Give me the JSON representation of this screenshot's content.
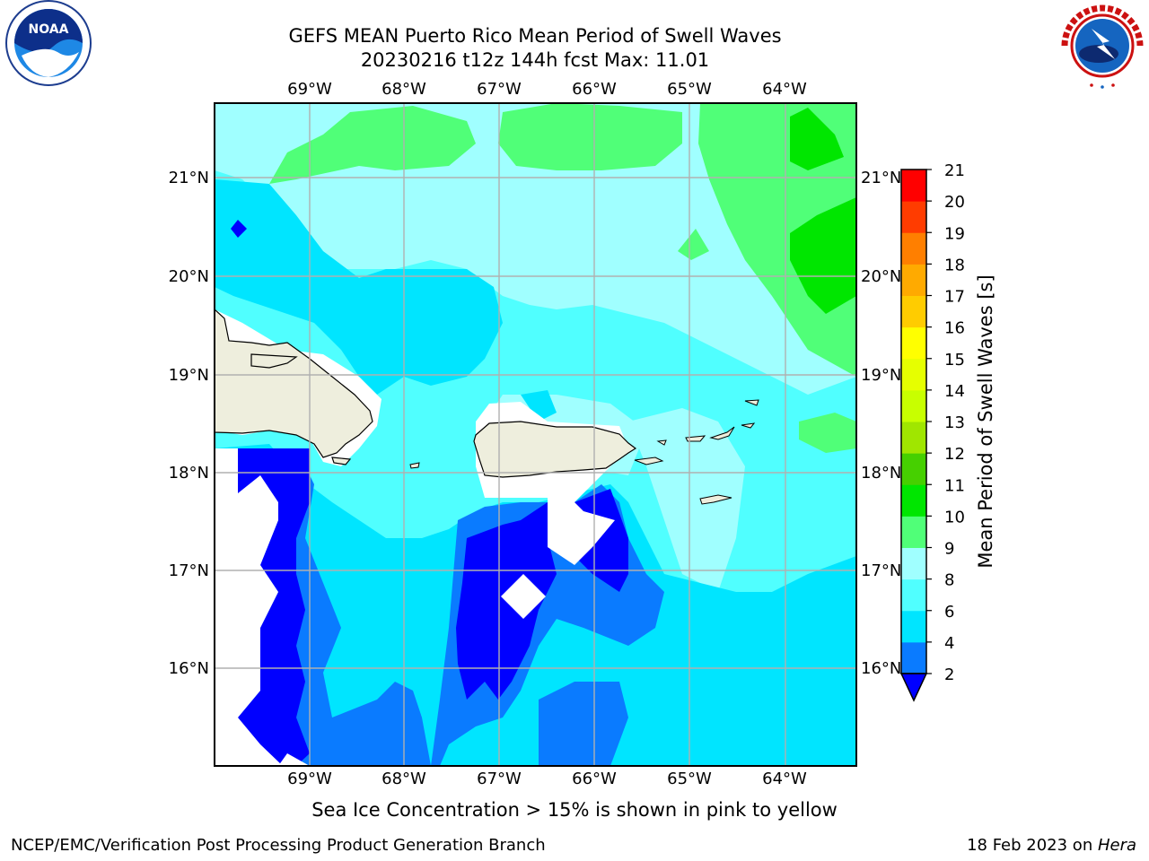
{
  "header": {
    "title_line1": "GEFS MEAN Puerto Rico Mean Period of Swell Waves",
    "title_line2": "20230216 t12z 144h fcst   Max: 11.01"
  },
  "logos": {
    "left": {
      "icon": "noaa-logo",
      "text": "NOAA"
    },
    "right": {
      "icon": "nws-logo",
      "text": "NATIONAL WEATHER SERVICE"
    }
  },
  "map": {
    "lon_labels": [
      "69°W",
      "68°W",
      "67°W",
      "66°W",
      "65°W",
      "64°W"
    ],
    "lat_labels": [
      "21°N",
      "20°N",
      "19°N",
      "18°N",
      "17°N",
      "16°N"
    ]
  },
  "colorbar": {
    "label": "Mean Period of Swell Waves [s]",
    "ticks": [
      "2",
      "4",
      "6",
      "8",
      "9",
      "10",
      "11",
      "12",
      "13",
      "14",
      "15",
      "16",
      "17",
      "18",
      "19",
      "20",
      "21"
    ],
    "colors": [
      "#0000ff",
      "#0a7bff",
      "#00e5ff",
      "#50ffff",
      "#a0ffff",
      "#50ff78",
      "#00e600",
      "#46d000",
      "#a0e600",
      "#c8ff00",
      "#e6ff00",
      "#ffff00",
      "#ffcc00",
      "#ffaa00",
      "#ff7f00",
      "#ff3c00",
      "#ff0000"
    ],
    "land_color": "#eeeedd",
    "ocean_under_color": "#ffffff"
  },
  "annotations": {
    "sea_ice_note": "Sea Ice Concentration > 15% is shown in pink to yellow"
  },
  "footer": {
    "left": "NCEP/EMC/Verification Post Processing Product Generation Branch",
    "right_prefix": "18 Feb 2023 on ",
    "right_machine": "Hera"
  }
}
